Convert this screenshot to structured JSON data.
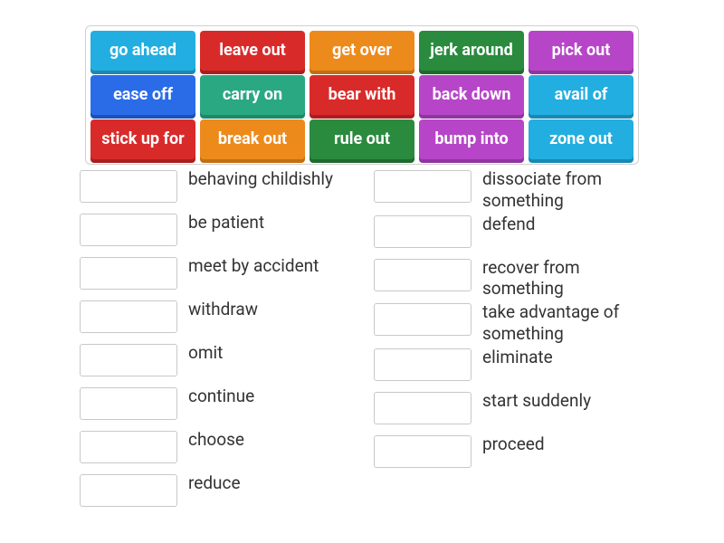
{
  "colors": {
    "blue": {
      "fill": "#2a6ce8",
      "shadow": "#1f4fb3"
    },
    "red": {
      "fill": "#d92a2a",
      "shadow": "#a81f1f"
    },
    "orange": {
      "fill": "#ed8a1c",
      "shadow": "#c06f14"
    },
    "green": {
      "fill": "#2a8a3e",
      "shadow": "#1f6a2f"
    },
    "purple": {
      "fill": "#b646c7",
      "shadow": "#8f35a0"
    },
    "cyan": {
      "fill": "#22aee0",
      "shadow": "#1889b3"
    },
    "teal": {
      "fill": "#2aa882",
      "shadow": "#208866"
    }
  },
  "word_bank": {
    "border_color": "#d0d0d0",
    "tile_fontsize": 18,
    "tile_fontweight": 700,
    "text_color": "#ffffff",
    "tiles": [
      {
        "label": "go ahead",
        "color": "cyan"
      },
      {
        "label": "leave out",
        "color": "red"
      },
      {
        "label": "get over",
        "color": "orange"
      },
      {
        "label": "jerk around",
        "color": "green"
      },
      {
        "label": "pick out",
        "color": "purple"
      },
      {
        "label": "ease off",
        "color": "blue"
      },
      {
        "label": "carry on",
        "color": "teal"
      },
      {
        "label": "bear with",
        "color": "red"
      },
      {
        "label": "back down",
        "color": "purple"
      },
      {
        "label": "avail of",
        "color": "cyan"
      },
      {
        "label": "stick up for",
        "color": "red"
      },
      {
        "label": "break out",
        "color": "orange"
      },
      {
        "label": "rule out",
        "color": "green"
      },
      {
        "label": "bump into",
        "color": "purple"
      },
      {
        "label": "zone out",
        "color": "cyan"
      }
    ]
  },
  "answers": {
    "slot_border_color": "#c8c8c8",
    "definition_fontsize": 19,
    "definition_color": "#333333",
    "left_column": [
      {
        "definition": "behaving childishly"
      },
      {
        "definition": "be patient"
      },
      {
        "definition": "meet by accident"
      },
      {
        "definition": "withdraw"
      },
      {
        "definition": "omit"
      },
      {
        "definition": "continue"
      },
      {
        "definition": "choose"
      },
      {
        "definition": "reduce"
      }
    ],
    "right_column": [
      {
        "definition": "dissociate from something"
      },
      {
        "definition": "defend"
      },
      {
        "definition": "recover from something"
      },
      {
        "definition": "take advantage of something"
      },
      {
        "definition": "eliminate"
      },
      {
        "definition": "start suddenly"
      },
      {
        "definition": "proceed"
      }
    ]
  }
}
